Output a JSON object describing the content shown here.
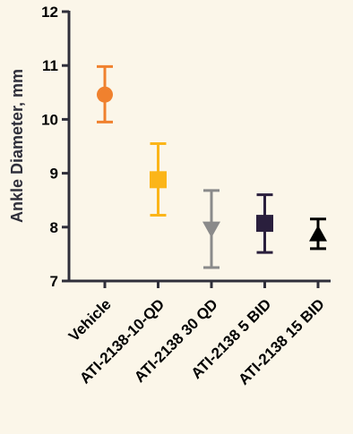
{
  "chart_data": {
    "type": "scatter",
    "ylabel": "Ankle Diameter, mm",
    "ylim": [
      7,
      12
    ],
    "yticks": [
      "7",
      "8",
      "9",
      "10",
      "11",
      "12"
    ],
    "grid": false,
    "categories": [
      "Vehicle",
      "ATI-2138-10-QD",
      "ATI-2138 30 QD",
      "ATI-2138 5 BID",
      "ATI-2138 15 BID"
    ],
    "points": [
      {
        "category": "Vehicle",
        "mean": 10.46,
        "err_low": 9.95,
        "err_high": 10.98,
        "marker": "circle",
        "color": "#f0812e"
      },
      {
        "category": "ATI-2138-10-QD",
        "mean": 8.88,
        "err_low": 8.22,
        "err_high": 9.55,
        "marker": "square",
        "color": "#fbb519"
      },
      {
        "category": "ATI-2138 30 QD",
        "mean": 7.97,
        "err_low": 7.25,
        "err_high": 8.68,
        "marker": "triangle-down",
        "color": "#8a8a8a"
      },
      {
        "category": "ATI-2138 5 BID",
        "mean": 8.07,
        "err_low": 7.53,
        "err_high": 8.6,
        "marker": "square",
        "color": "#2a1f3d"
      },
      {
        "category": "ATI-2138 15 BID",
        "mean": 7.87,
        "err_low": 7.6,
        "err_high": 8.15,
        "marker": "triangle-up",
        "color": "#000000"
      }
    ]
  }
}
